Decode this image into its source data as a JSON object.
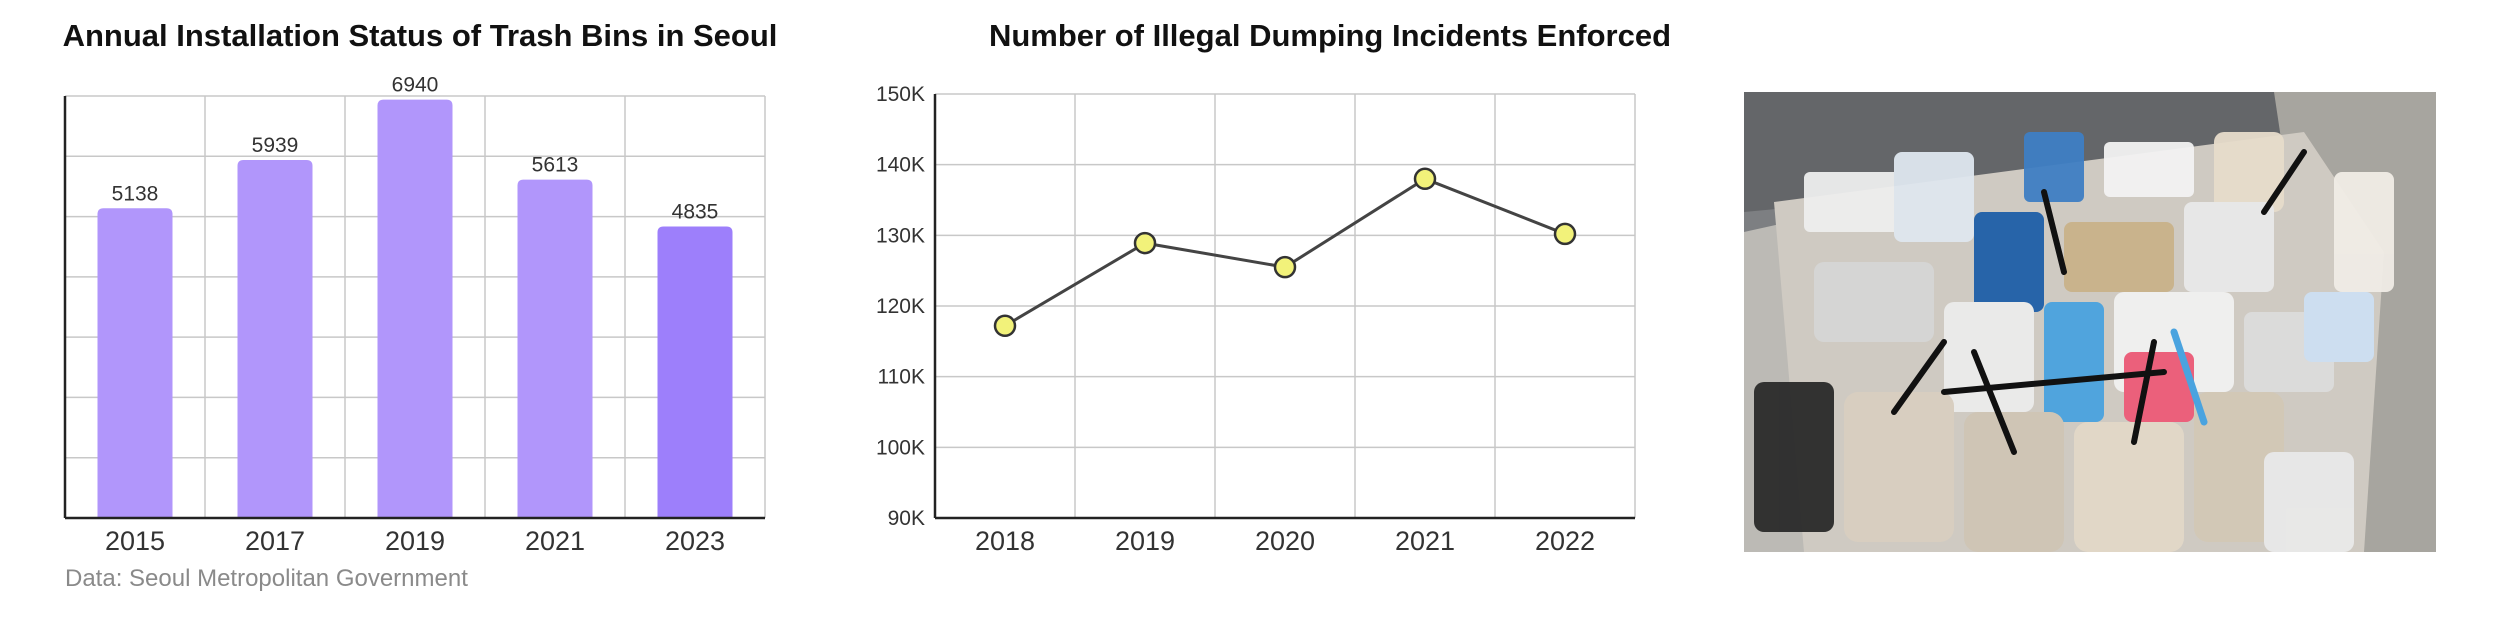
{
  "colors": {
    "bar": "#b196fb",
    "bar_highlight": "#9d7ffb",
    "line": "#444444",
    "marker_fill": "#f2f27a",
    "marker_stroke": "#333333",
    "grid": "#c8c8c8"
  },
  "source_note": "Data: Seoul Metropolitan Government",
  "photo": {
    "icon": "trash-pile-photo"
  },
  "chart_data": [
    {
      "type": "bar",
      "title": "Annual Installation Status of Trash Bins in Seoul",
      "categories": [
        "2015",
        "2017",
        "2019",
        "2021",
        "2023"
      ],
      "values": [
        5138,
        5939,
        6940,
        5613,
        4835
      ],
      "data_labels": [
        "5138",
        "5939",
        "6940",
        "5613",
        "4835"
      ],
      "highlight_index": 4,
      "ylim": [
        0,
        7000
      ],
      "y_ticks_shown": false,
      "xlabel": "",
      "ylabel": "",
      "grid": true,
      "legend": "none"
    },
    {
      "type": "line",
      "title": "Number of Illegal Dumping Incidents Enforced",
      "x": [
        "2018",
        "2019",
        "2020",
        "2021",
        "2022"
      ],
      "values": [
        117200,
        128900,
        125500,
        138000,
        130200
      ],
      "y_ticks": [
        90000,
        100000,
        110000,
        120000,
        130000,
        140000,
        150000
      ],
      "y_tick_labels": [
        "90K",
        "100K",
        "110K",
        "120K",
        "130K",
        "140K",
        "150K"
      ],
      "ylim": [
        90000,
        150000
      ],
      "xlabel": "",
      "ylabel": "",
      "grid": true,
      "legend": "none",
      "markers": true
    }
  ]
}
